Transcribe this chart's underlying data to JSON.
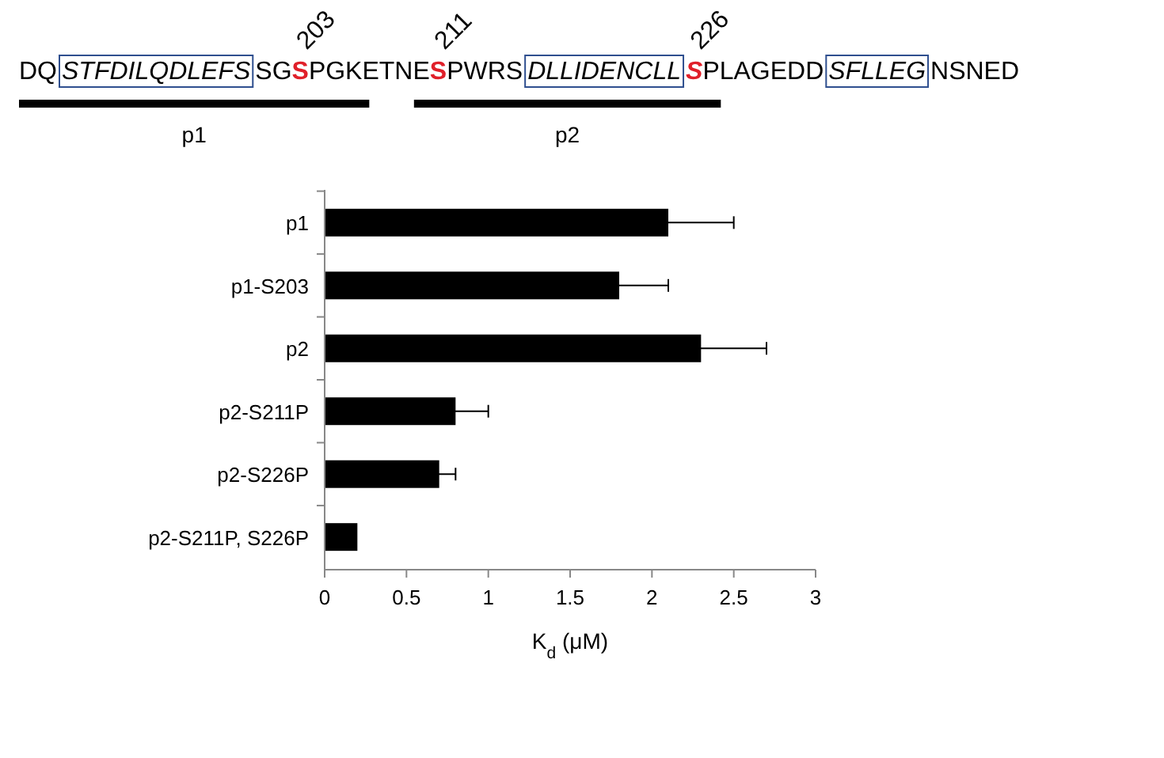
{
  "chart_data": {
    "type": "bar",
    "orientation": "horizontal",
    "categories": [
      "p1",
      "p1-S203",
      "p2",
      "p2-S211P",
      "p2-S226P",
      "p2-S211P, S226P"
    ],
    "values": [
      2.1,
      1.8,
      2.3,
      0.8,
      0.7,
      0.2
    ],
    "errors": [
      0.4,
      0.3,
      0.4,
      0.2,
      0.1,
      null
    ],
    "color": "#000000",
    "xlim": [
      0,
      3
    ],
    "xticks": [
      0,
      0.5,
      1,
      1.5,
      2,
      2.5,
      3
    ],
    "xlabel": "K$_{d}$ (μM)",
    "grid": false,
    "annotations": [
      "DQ",
      "STFDILQDLEFS",
      "SG",
      "S",
      "PGKETNE",
      "S",
      "PWRS",
      "DLLIDENCLL",
      "S",
      "PLAGEDD",
      "SFLLEG",
      "NSNED",
      "203",
      "211",
      "226",
      "p1",
      "p2"
    ]
  }
}
